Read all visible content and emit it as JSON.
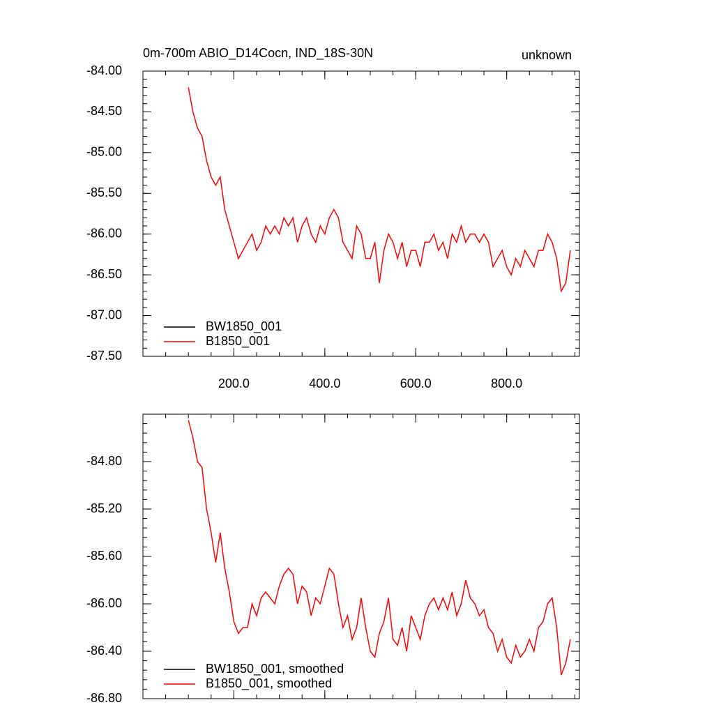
{
  "chart_data": [
    {
      "type": "line",
      "title": "0m-700m ABIO_D14Cocn, IND_18S-30N",
      "subtitle": "unknown",
      "x": [
        100,
        110,
        120,
        130,
        140,
        150,
        160,
        170,
        180,
        190,
        200,
        210,
        220,
        230,
        240,
        250,
        260,
        270,
        280,
        290,
        300,
        310,
        320,
        330,
        340,
        350,
        360,
        370,
        380,
        390,
        400,
        410,
        420,
        430,
        440,
        450,
        460,
        470,
        480,
        490,
        500,
        510,
        520,
        530,
        540,
        550,
        560,
        570,
        580,
        590,
        600,
        610,
        620,
        630,
        640,
        650,
        660,
        670,
        680,
        690,
        700,
        710,
        720,
        730,
        740,
        750,
        760,
        770,
        780,
        790,
        800,
        810,
        820,
        830,
        840,
        850,
        860,
        870,
        880,
        890,
        900,
        910,
        920,
        930,
        940
      ],
      "series": [
        {
          "name": "BW1850_001",
          "color": "#000000",
          "values": [
            null,
            null,
            null,
            null,
            null,
            null,
            null,
            null,
            null,
            null,
            null,
            null,
            null,
            null,
            null,
            null,
            null,
            null,
            null,
            null,
            null,
            null,
            null,
            null,
            null,
            null,
            null,
            null,
            null,
            null,
            null,
            null,
            null,
            null,
            null,
            null,
            null,
            null,
            null,
            null,
            null,
            null,
            null,
            null,
            null,
            null,
            null,
            null,
            null,
            null,
            null,
            null,
            null,
            null,
            null,
            null,
            null,
            null,
            null,
            null,
            null,
            null,
            null,
            null,
            null,
            null,
            null,
            null,
            null,
            null,
            null,
            null,
            null,
            null,
            null,
            null,
            null,
            null,
            null,
            null,
            null,
            null,
            null,
            null,
            null
          ]
        },
        {
          "name": "B1850_001",
          "color": "#ff0000",
          "values": [
            -84.2,
            -84.5,
            -84.7,
            -84.8,
            -85.1,
            -85.3,
            -85.4,
            -85.3,
            -85.7,
            -85.9,
            -86.1,
            -86.3,
            -86.2,
            -86.1,
            -86.0,
            -86.2,
            -86.1,
            -85.9,
            -86.0,
            -85.9,
            -86.0,
            -85.8,
            -85.9,
            -85.8,
            -86.1,
            -85.9,
            -85.8,
            -86.0,
            -86.1,
            -85.9,
            -86.0,
            -85.8,
            -85.7,
            -85.8,
            -86.1,
            -86.2,
            -86.3,
            -85.9,
            -86.0,
            -86.3,
            -86.3,
            -86.1,
            -86.6,
            -86.2,
            -86.0,
            -86.1,
            -86.3,
            -86.1,
            -86.4,
            -86.2,
            -86.2,
            -86.4,
            -86.1,
            -86.1,
            -86.0,
            -86.2,
            -86.1,
            -86.3,
            -86.0,
            -86.1,
            -85.9,
            -86.1,
            -86.0,
            -86.0,
            -86.1,
            -86.0,
            -86.1,
            -86.4,
            -86.3,
            -86.2,
            -86.4,
            -86.5,
            -86.3,
            -86.4,
            -86.2,
            -86.3,
            -86.4,
            -86.2,
            -86.2,
            -86.0,
            -86.1,
            -86.3,
            -86.7,
            -86.6,
            -86.2
          ]
        }
      ],
      "xlim": [
        0,
        960
      ],
      "xticks": [
        {
          "value": 200,
          "label": "200.0"
        },
        {
          "value": 400,
          "label": "400.0"
        },
        {
          "value": 600,
          "label": "600.0"
        },
        {
          "value": 800,
          "label": "800.0"
        }
      ],
      "ylim": [
        -87.5,
        -84.0
      ],
      "yticks": [
        {
          "value": -84.0,
          "label": "-84.00"
        },
        {
          "value": -84.5,
          "label": "-84.50"
        },
        {
          "value": -85.0,
          "label": "-85.00"
        },
        {
          "value": -85.5,
          "label": "-85.50"
        },
        {
          "value": -86.0,
          "label": "-86.00"
        },
        {
          "value": -86.5,
          "label": "-86.50"
        },
        {
          "value": -87.0,
          "label": "-87.00"
        },
        {
          "value": -87.5,
          "label": "-87.50"
        }
      ],
      "legend": "lower left"
    },
    {
      "type": "line",
      "x": [
        100,
        110,
        120,
        130,
        140,
        150,
        160,
        170,
        180,
        190,
        200,
        210,
        220,
        230,
        240,
        250,
        260,
        270,
        280,
        290,
        300,
        310,
        320,
        330,
        340,
        350,
        360,
        370,
        380,
        390,
        400,
        410,
        420,
        430,
        440,
        450,
        460,
        470,
        480,
        490,
        500,
        510,
        520,
        530,
        540,
        550,
        560,
        570,
        580,
        590,
        600,
        610,
        620,
        630,
        640,
        650,
        660,
        670,
        680,
        690,
        700,
        710,
        720,
        730,
        740,
        750,
        760,
        770,
        780,
        790,
        800,
        810,
        820,
        830,
        840,
        850,
        860,
        870,
        880,
        890,
        900,
        910,
        920,
        930,
        940
      ],
      "series": [
        {
          "name": "BW1850_001, smoothed",
          "color": "#000000",
          "values": [
            null,
            null,
            null,
            null,
            null,
            null,
            null,
            null,
            null,
            null,
            null,
            null,
            null,
            null,
            null,
            null,
            null,
            null,
            null,
            null,
            null,
            null,
            null,
            null,
            null,
            null,
            null,
            null,
            null,
            null,
            null,
            null,
            null,
            null,
            null,
            null,
            null,
            null,
            null,
            null,
            null,
            null,
            null,
            null,
            null,
            null,
            null,
            null,
            null,
            null,
            null,
            null,
            null,
            null,
            null,
            null,
            null,
            null,
            null,
            null,
            null,
            null,
            null,
            null,
            null,
            null,
            null,
            null,
            null,
            null,
            null,
            null,
            null,
            null,
            null,
            null,
            null,
            null,
            null,
            null,
            null,
            null,
            null,
            null,
            null
          ]
        },
        {
          "name": "B1850_001, smoothed",
          "color": "#ff0000",
          "values": [
            -84.45,
            -84.6,
            -84.8,
            -84.85,
            -85.2,
            -85.4,
            -85.65,
            -85.4,
            -85.7,
            -85.9,
            -86.15,
            -86.25,
            -86.2,
            -86.2,
            -86.0,
            -86.1,
            -85.95,
            -85.9,
            -85.95,
            -86.0,
            -85.85,
            -85.75,
            -85.7,
            -85.75,
            -86.0,
            -85.85,
            -85.9,
            -86.1,
            -85.95,
            -86.0,
            -85.85,
            -85.7,
            -85.75,
            -86.0,
            -86.2,
            -86.1,
            -86.3,
            -86.2,
            -85.95,
            -86.2,
            -86.4,
            -86.45,
            -86.25,
            -86.15,
            -85.95,
            -86.3,
            -86.35,
            -86.2,
            -86.4,
            -86.1,
            -86.2,
            -86.3,
            -86.1,
            -86.0,
            -85.95,
            -86.05,
            -85.95,
            -86.05,
            -85.9,
            -86.1,
            -86.0,
            -85.8,
            -85.95,
            -86.0,
            -86.1,
            -86.05,
            -86.2,
            -86.25,
            -86.4,
            -86.3,
            -86.45,
            -86.5,
            -86.35,
            -86.45,
            -86.4,
            -86.3,
            -86.4,
            -86.2,
            -86.15,
            -86.0,
            -85.95,
            -86.2,
            -86.6,
            -86.5,
            -86.3
          ]
        }
      ],
      "xlim": [
        0,
        960
      ],
      "xticks": [
        200,
        400,
        600,
        800
      ],
      "ylim": [
        -86.8,
        -84.4
      ],
      "yticks": [
        {
          "value": -84.8,
          "label": "-84.80"
        },
        {
          "value": -85.2,
          "label": "-85.20"
        },
        {
          "value": -85.6,
          "label": "-85.60"
        },
        {
          "value": -86.0,
          "label": "-86.00"
        },
        {
          "value": -86.4,
          "label": "-86.40"
        },
        {
          "value": -86.8,
          "label": "-86.80"
        }
      ],
      "legend": "lower left"
    }
  ]
}
